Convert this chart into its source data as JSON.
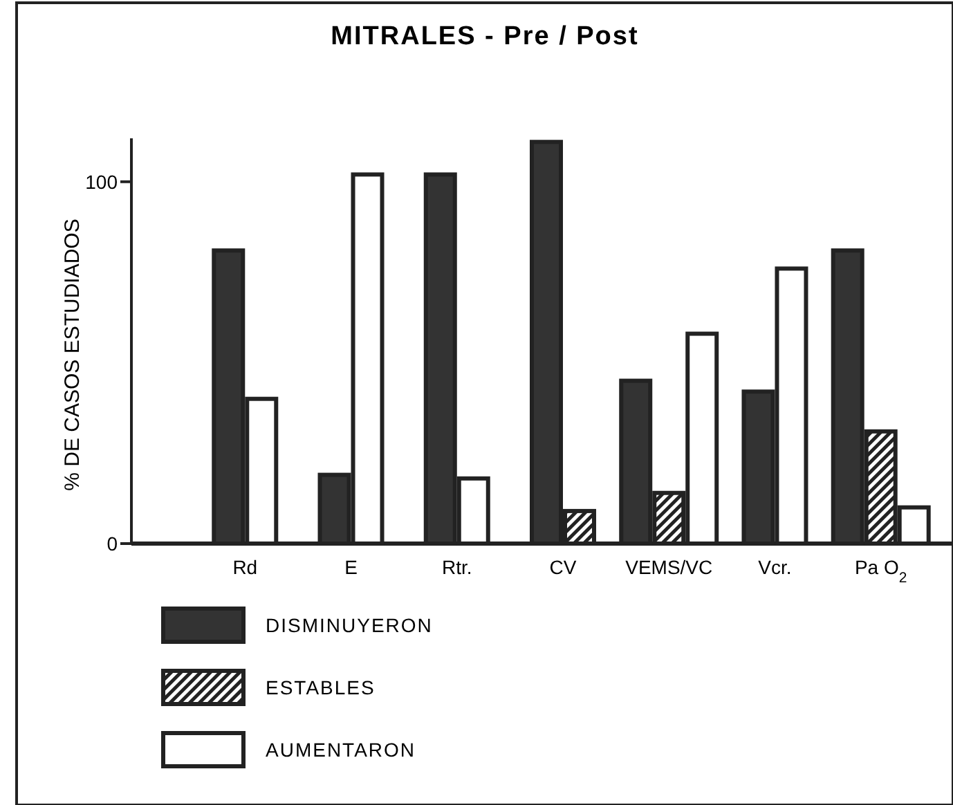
{
  "chart_data": {
    "type": "bar",
    "title": "MITRALES - Pre / Post",
    "ylabel": "% DE CASOS ESTUDIADOS",
    "categories": [
      "Rd",
      "E",
      "Rtr.",
      "CV",
      "VEMS/VC",
      "Vcr.",
      "Pa O$_{2}$"
    ],
    "series": [
      {
        "name": "DISMINUYERON",
        "color": "#333333",
        "values": [
          81,
          19,
          102,
          111,
          45,
          42,
          81
        ]
      },
      {
        "name": "ESTABLES",
        "color": "#222222",
        "values": [
          null,
          null,
          null,
          9,
          14,
          null,
          31
        ]
      },
      {
        "name": "AUMENTARON",
        "color": "#ffffff",
        "values": [
          40,
          102,
          18,
          null,
          58,
          76,
          10
        ]
      }
    ],
    "ylim": [
      0,
      112
    ],
    "yticks": [
      0,
      100
    ],
    "grid": false,
    "legend": "bottom left"
  }
}
